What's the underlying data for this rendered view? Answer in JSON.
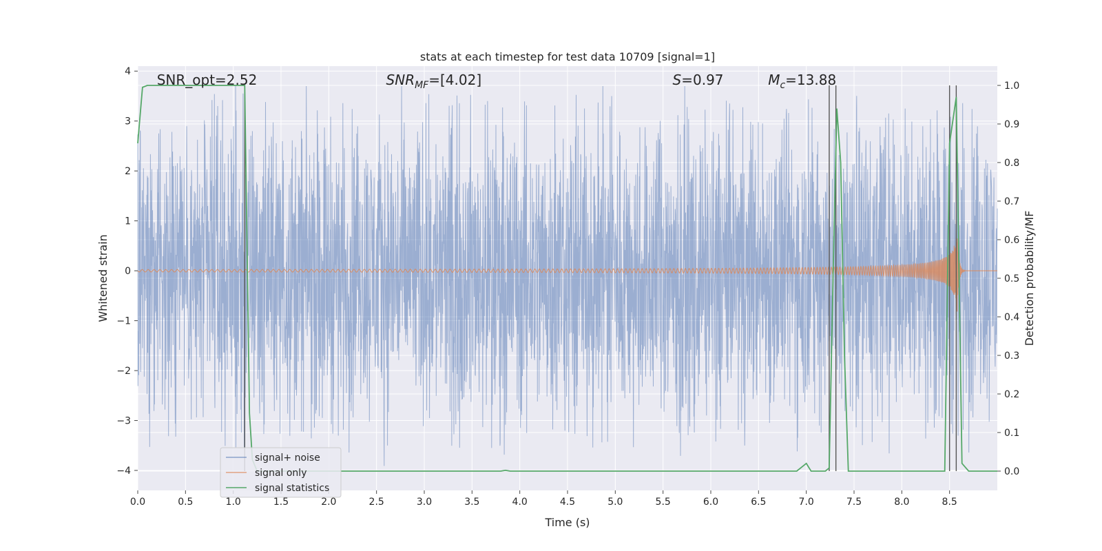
{
  "chart_data": {
    "type": "line",
    "title": "stats at each timestep for test data 10709 [signal=1]",
    "xlabel": "Time (s)",
    "ylabel": "Whitened strain",
    "y2label": "Detection probability/MF",
    "xlim": [
      0,
      9
    ],
    "ylim": [
      -4.4,
      4.1
    ],
    "y2lim": [
      -0.05,
      1.05
    ],
    "xticks": [
      "0.0",
      "0.5",
      "1.0",
      "1.5",
      "2.0",
      "2.5",
      "3.0",
      "3.5",
      "4.0",
      "4.5",
      "5.0",
      "5.5",
      "6.0",
      "6.5",
      "7.0",
      "7.5",
      "8.0",
      "8.5"
    ],
    "yticks": [
      "4",
      "3",
      "2",
      "1",
      "0",
      "−1",
      "−2",
      "−3",
      "−4"
    ],
    "y2ticks": [
      "1.0",
      "0.9",
      "0.8",
      "0.7",
      "0.6",
      "0.5",
      "0.4",
      "0.3",
      "0.2",
      "0.1",
      "0.0"
    ],
    "grid": true,
    "legend_position": "lower-left",
    "colors": {
      "noise": "#4c72b0",
      "signal": "#dd8452",
      "stats": "#55a868",
      "vlines": "#555555",
      "background": "#eaeaf2",
      "grid": "#ffffff"
    },
    "series": [
      {
        "name": "signal+ noise",
        "kind": "noise-band",
        "typical_amplitude": 1.5,
        "peak_max": 3.7,
        "peak_min": -4.0
      },
      {
        "name": "signal only",
        "kind": "chirp",
        "t_merger": 8.58,
        "peak_amplitude": 0.9
      },
      {
        "name": "signal statistics",
        "axis": "right",
        "x": [
          0,
          0.05,
          0.1,
          0.3,
          0.6,
          0.9,
          1.12,
          1.17,
          1.2,
          1.25,
          1.3,
          1.5,
          2.0,
          3.0,
          3.8,
          3.85,
          3.9,
          5.0,
          6.0,
          6.9,
          7.0,
          7.05,
          7.2,
          7.24,
          7.28,
          7.32,
          7.36,
          7.4,
          7.44,
          7.6,
          8.0,
          8.45,
          8.5,
          8.57,
          8.6,
          8.63,
          8.7,
          9.0
        ],
        "values": [
          0.85,
          0.995,
          1.0,
          1.0,
          1.0,
          1.0,
          1.0,
          0.15,
          0.03,
          0.0,
          0.0,
          0.0,
          0.0,
          0.0,
          0.0,
          0.002,
          0.0,
          0.0,
          0.0,
          0.0,
          0.02,
          0.0,
          0.0,
          0.008,
          0.5,
          0.94,
          0.8,
          0.3,
          0.0,
          0.0,
          0.0,
          0.0,
          0.85,
          0.97,
          0.5,
          0.02,
          0.0,
          0.0
        ]
      }
    ],
    "vlines": [
      1.12,
      7.24,
      7.31,
      8.5,
      8.57
    ],
    "annotations": [
      {
        "text": "SNR_opt=2.52",
        "x": 0.2,
        "style": "normal"
      },
      {
        "text": "SNR",
        "sub": "MF",
        "rest": "=[4.02]",
        "x": 2.6,
        "style": "italic"
      },
      {
        "text": "S",
        "rest": "=0.97",
        "x": 5.6,
        "style": "italic"
      },
      {
        "text": "M",
        "sub": "c",
        "rest": "=13.88",
        "x": 6.6,
        "style": "italic"
      }
    ]
  }
}
